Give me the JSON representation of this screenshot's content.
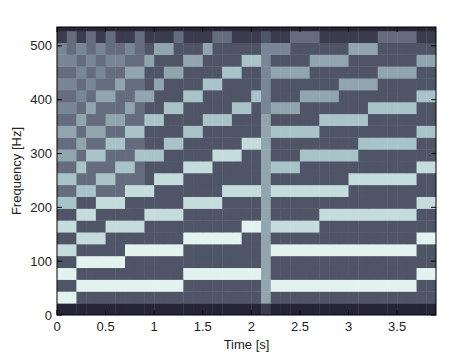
{
  "chart_data": {
    "type": "heatmap",
    "xlabel": "Time [s]",
    "ylabel": "Frequency [Hz]",
    "x": [
      0.05,
      0.15,
      0.25,
      0.35,
      0.45,
      0.55,
      0.65,
      0.75,
      0.85,
      0.95,
      1.05,
      1.15,
      1.25,
      1.35,
      1.45,
      1.55,
      1.65,
      1.75,
      1.85,
      1.95,
      2.05,
      2.15,
      2.25,
      2.35,
      2.45,
      2.55,
      2.65,
      2.75,
      2.85,
      2.95,
      3.05,
      3.15,
      3.25,
      3.35,
      3.45,
      3.55,
      3.65,
      3.75,
      3.85,
      3.95
    ],
    "y": [
      11,
      33,
      55,
      77,
      99,
      121,
      143,
      165,
      187,
      209,
      231,
      253,
      275,
      297,
      319,
      341,
      363,
      385,
      407,
      429,
      451,
      473,
      495,
      517,
      539
    ],
    "cells": [
      [
        1,
        1,
        1,
        1,
        1,
        1,
        1,
        1,
        1,
        1,
        1,
        1,
        1,
        1,
        1,
        1,
        1,
        1,
        1,
        1,
        1,
        2,
        1,
        1,
        1,
        1,
        1,
        1,
        1,
        1,
        1,
        1,
        1,
        1,
        1,
        1,
        1,
        1,
        1,
        1
      ],
      [
        9,
        9,
        3,
        3,
        3,
        3,
        3,
        3,
        3,
        3,
        3,
        3,
        3,
        3,
        3,
        3,
        3,
        3,
        3,
        3,
        3,
        6,
        3,
        3,
        3,
        3,
        3,
        3,
        3,
        3,
        3,
        3,
        3,
        3,
        3,
        3,
        3,
        3,
        3,
        3
      ],
      [
        3,
        3,
        9,
        9,
        9,
        9,
        9,
        9,
        9,
        9,
        9,
        9,
        9,
        3,
        3,
        3,
        3,
        3,
        3,
        3,
        3,
        6,
        9,
        9,
        9,
        9,
        9,
        9,
        9,
        9,
        9,
        9,
        9,
        9,
        9,
        9,
        9,
        3,
        3,
        3
      ],
      [
        9,
        9,
        3,
        3,
        3,
        3,
        3,
        3,
        3,
        3,
        3,
        3,
        3,
        9,
        9,
        9,
        9,
        9,
        9,
        9,
        9,
        6,
        3,
        3,
        3,
        3,
        3,
        3,
        3,
        3,
        3,
        3,
        3,
        3,
        3,
        3,
        3,
        9,
        9,
        9
      ],
      [
        3,
        3,
        9,
        9,
        9,
        9,
        9,
        3,
        3,
        3,
        3,
        3,
        3,
        3,
        3,
        3,
        3,
        3,
        3,
        3,
        3,
        6,
        3,
        3,
        3,
        3,
        3,
        3,
        3,
        3,
        3,
        3,
        3,
        3,
        3,
        3,
        3,
        3,
        3,
        3
      ],
      [
        8,
        8,
        3,
        3,
        3,
        3,
        3,
        9,
        9,
        9,
        9,
        9,
        9,
        3,
        3,
        3,
        3,
        3,
        3,
        3,
        3,
        6,
        9,
        9,
        9,
        9,
        9,
        9,
        9,
        9,
        9,
        9,
        9,
        9,
        9,
        9,
        9,
        3,
        3,
        3
      ],
      [
        3,
        3,
        8,
        8,
        8,
        3,
        3,
        3,
        3,
        3,
        3,
        3,
        3,
        9,
        9,
        9,
        9,
        9,
        9,
        3,
        3,
        6,
        3,
        3,
        3,
        3,
        3,
        3,
        3,
        3,
        3,
        3,
        3,
        3,
        3,
        3,
        3,
        9,
        9,
        9
      ],
      [
        8,
        8,
        3,
        3,
        3,
        8,
        8,
        8,
        8,
        3,
        3,
        3,
        3,
        3,
        3,
        3,
        3,
        3,
        3,
        9,
        9,
        6,
        8,
        8,
        8,
        8,
        8,
        3,
        3,
        3,
        3,
        3,
        3,
        3,
        3,
        3,
        3,
        3,
        3,
        3
      ],
      [
        3,
        3,
        8,
        8,
        3,
        3,
        3,
        3,
        3,
        8,
        8,
        8,
        8,
        3,
        3,
        3,
        3,
        3,
        3,
        3,
        3,
        6,
        3,
        3,
        3,
        3,
        3,
        8,
        8,
        8,
        8,
        8,
        8,
        8,
        8,
        8,
        8,
        3,
        3,
        3
      ],
      [
        7,
        7,
        3,
        3,
        8,
        8,
        8,
        3,
        3,
        3,
        3,
        3,
        3,
        8,
        8,
        8,
        8,
        3,
        3,
        3,
        3,
        6,
        3,
        3,
        3,
        3,
        3,
        3,
        3,
        3,
        3,
        3,
        3,
        3,
        3,
        3,
        3,
        8,
        8,
        8
      ],
      [
        4,
        4,
        7,
        7,
        4,
        4,
        4,
        8,
        8,
        8,
        3,
        3,
        3,
        3,
        3,
        3,
        3,
        8,
        8,
        8,
        8,
        6,
        8,
        8,
        8,
        8,
        8,
        8,
        8,
        8,
        3,
        3,
        3,
        3,
        3,
        3,
        3,
        3,
        3,
        3
      ],
      [
        7,
        7,
        4,
        4,
        7,
        7,
        4,
        4,
        4,
        3,
        8,
        8,
        8,
        3,
        3,
        3,
        3,
        3,
        3,
        3,
        3,
        6,
        3,
        3,
        3,
        3,
        3,
        3,
        3,
        3,
        8,
        8,
        8,
        8,
        8,
        8,
        8,
        3,
        3,
        3
      ],
      [
        4,
        4,
        7,
        4,
        4,
        4,
        7,
        7,
        4,
        3,
        3,
        3,
        3,
        8,
        8,
        8,
        3,
        3,
        3,
        3,
        3,
        6,
        7,
        7,
        7,
        3,
        3,
        3,
        3,
        3,
        3,
        3,
        3,
        3,
        3,
        3,
        3,
        8,
        8,
        8
      ],
      [
        6,
        6,
        4,
        7,
        7,
        4,
        4,
        4,
        7,
        7,
        7,
        3,
        3,
        3,
        3,
        3,
        8,
        8,
        8,
        3,
        3,
        6,
        3,
        3,
        3,
        7,
        7,
        7,
        7,
        7,
        7,
        3,
        3,
        3,
        3,
        3,
        3,
        3,
        3,
        3
      ],
      [
        4,
        4,
        6,
        4,
        4,
        7,
        7,
        4,
        4,
        3,
        3,
        7,
        7,
        3,
        3,
        3,
        3,
        3,
        3,
        8,
        8,
        6,
        3,
        3,
        3,
        3,
        3,
        3,
        3,
        3,
        3,
        7,
        7,
        7,
        7,
        7,
        7,
        3,
        3,
        3
      ],
      [
        6,
        6,
        4,
        6,
        6,
        4,
        4,
        7,
        7,
        3,
        3,
        3,
        3,
        7,
        7,
        3,
        3,
        3,
        3,
        3,
        3,
        6,
        7,
        7,
        7,
        7,
        7,
        3,
        3,
        3,
        3,
        3,
        3,
        3,
        3,
        3,
        3,
        7,
        7,
        7
      ],
      [
        4,
        4,
        6,
        4,
        4,
        6,
        6,
        4,
        4,
        7,
        7,
        3,
        3,
        3,
        3,
        7,
        7,
        7,
        3,
        3,
        3,
        6,
        3,
        3,
        3,
        3,
        3,
        7,
        7,
        7,
        7,
        7,
        3,
        3,
        3,
        3,
        3,
        3,
        3,
        3
      ],
      [
        5,
        5,
        4,
        6,
        4,
        4,
        4,
        6,
        4,
        3,
        3,
        7,
        7,
        3,
        3,
        3,
        3,
        3,
        7,
        7,
        3,
        5,
        6,
        6,
        6,
        3,
        3,
        3,
        3,
        3,
        3,
        3,
        7,
        7,
        7,
        7,
        7,
        3,
        3,
        3
      ],
      [
        4,
        4,
        5,
        4,
        6,
        6,
        4,
        4,
        6,
        6,
        3,
        3,
        3,
        7,
        7,
        3,
        3,
        3,
        3,
        3,
        7,
        5,
        3,
        3,
        3,
        6,
        6,
        6,
        6,
        3,
        3,
        3,
        3,
        3,
        3,
        3,
        3,
        7,
        7,
        7
      ],
      [
        5,
        5,
        4,
        5,
        4,
        4,
        6,
        4,
        4,
        3,
        6,
        3,
        3,
        3,
        3,
        7,
        7,
        3,
        3,
        3,
        3,
        5,
        3,
        3,
        3,
        3,
        3,
        3,
        3,
        6,
        6,
        6,
        6,
        3,
        3,
        3,
        3,
        3,
        3,
        3
      ],
      [
        4,
        4,
        5,
        4,
        5,
        4,
        4,
        6,
        6,
        3,
        3,
        6,
        6,
        3,
        3,
        3,
        3,
        7,
        7,
        3,
        3,
        5,
        6,
        6,
        6,
        6,
        3,
        3,
        3,
        3,
        3,
        3,
        3,
        6,
        6,
        6,
        6,
        3,
        3,
        3
      ],
      [
        5,
        5,
        4,
        5,
        4,
        5,
        5,
        4,
        4,
        6,
        3,
        3,
        3,
        6,
        6,
        3,
        3,
        3,
        3,
        7,
        7,
        5,
        3,
        3,
        3,
        3,
        6,
        6,
        6,
        6,
        3,
        3,
        3,
        3,
        3,
        3,
        3,
        6,
        6,
        6
      ],
      [
        5,
        4,
        5,
        4,
        5,
        4,
        4,
        5,
        4,
        3,
        6,
        6,
        3,
        3,
        3,
        6,
        3,
        3,
        3,
        3,
        3,
        5,
        5,
        5,
        3,
        3,
        3,
        3,
        3,
        3,
        6,
        6,
        6,
        3,
        3,
        3,
        3,
        3,
        3,
        3
      ],
      [
        2,
        4,
        2,
        4,
        2,
        4,
        2,
        2,
        4,
        2,
        2,
        2,
        4,
        2,
        2,
        2,
        4,
        4,
        2,
        2,
        2,
        3,
        2,
        2,
        4,
        4,
        4,
        2,
        2,
        2,
        2,
        2,
        2,
        4,
        4,
        4,
        4,
        2,
        2,
        2
      ],
      [
        1,
        1,
        1,
        1,
        1,
        1,
        1,
        1,
        1,
        1,
        1,
        1,
        1,
        1,
        1,
        1,
        1,
        1,
        1,
        1,
        1,
        1,
        1,
        1,
        1,
        1,
        1,
        1,
        1,
        1,
        1,
        1,
        1,
        1,
        1,
        1,
        1,
        1,
        1,
        1
      ]
    ],
    "xlim": [
      0,
      3.9
    ],
    "ylim": [
      0,
      535
    ],
    "xticks": [
      0,
      0.5,
      1,
      1.5,
      2,
      2.5,
      3,
      3.5
    ],
    "yticks": [
      0,
      100,
      200,
      300,
      400,
      500
    ]
  }
}
